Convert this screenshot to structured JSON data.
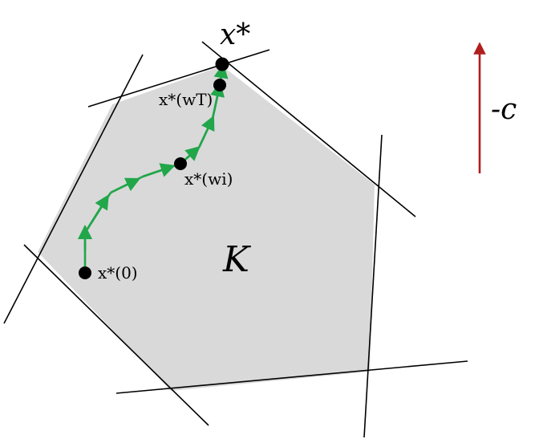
{
  "diagram": {
    "labels": {
      "optimum": "x*",
      "region": "K",
      "direction": "-c",
      "start_point": "x*(0)",
      "intermediate_point": "x*(wi)",
      "final_point": "x*(wT)"
    },
    "colors": {
      "region_fill": "#d9d9d9",
      "boundary": "#000000",
      "path": "#21a64a",
      "direction_arrow": "#b01e1e",
      "point": "#000000"
    },
    "point_names": [
      "x*(0)",
      "x*(wi)",
      "x*(wT)",
      "x*"
    ]
  }
}
